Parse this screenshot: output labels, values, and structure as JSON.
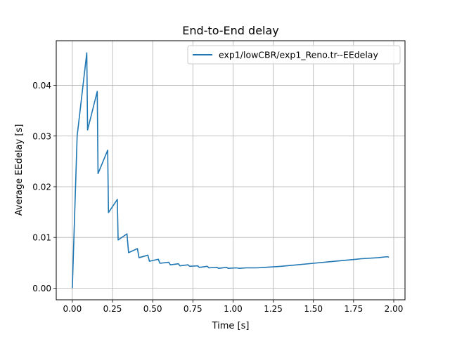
{
  "chart_data": {
    "type": "line",
    "title": "End-to-End delay",
    "xlabel": "Time [s]",
    "ylabel": "Average EEdelay [s]",
    "xlim": [
      -0.1,
      2.07
    ],
    "ylim": [
      -0.0023,
      0.0488
    ],
    "xticks": [
      0.0,
      0.25,
      0.5,
      0.75,
      1.0,
      1.25,
      1.5,
      1.75,
      2.0
    ],
    "xtick_labels": [
      "0.00",
      "0.25",
      "0.50",
      "0.75",
      "1.00",
      "1.25",
      "1.50",
      "1.75",
      "2.00"
    ],
    "yticks": [
      0.0,
      0.01,
      0.02,
      0.03,
      0.04
    ],
    "ytick_labels": [
      "0.00",
      "0.01",
      "0.02",
      "0.03",
      "0.04"
    ],
    "grid": true,
    "legend": {
      "placement": "top-right"
    },
    "colors": {
      "series": "#1f77b4",
      "grid": "#b0b0b0"
    },
    "series": [
      {
        "name": "exp1/lowCBR/exp1_Reno.tr--EEdelay",
        "x": [
          0.0,
          0.015,
          0.03,
          0.09,
          0.095,
          0.155,
          0.16,
          0.22,
          0.225,
          0.28,
          0.285,
          0.34,
          0.35,
          0.405,
          0.415,
          0.47,
          0.48,
          0.535,
          0.545,
          0.6,
          0.61,
          0.66,
          0.67,
          0.72,
          0.73,
          0.78,
          0.79,
          0.84,
          0.85,
          0.9,
          0.91,
          0.96,
          0.97,
          1.02,
          1.04,
          1.08,
          1.15,
          1.2,
          1.3,
          1.4,
          1.5,
          1.6,
          1.7,
          1.8,
          1.9,
          1.96,
          1.97
        ],
        "y": [
          0.0,
          0.015,
          0.03,
          0.0464,
          0.0312,
          0.0388,
          0.0226,
          0.0272,
          0.0149,
          0.0175,
          0.0095,
          0.0107,
          0.007,
          0.0078,
          0.006,
          0.0065,
          0.0053,
          0.0057,
          0.0049,
          0.0051,
          0.0046,
          0.0048,
          0.0044,
          0.0046,
          0.0043,
          0.0044,
          0.0041,
          0.0043,
          0.004,
          0.0041,
          0.0039,
          0.0041,
          0.0039,
          0.004,
          0.0039,
          0.004,
          0.004,
          0.0041,
          0.0043,
          0.0046,
          0.0049,
          0.0052,
          0.0055,
          0.0058,
          0.006,
          0.0062,
          0.0061
        ]
      }
    ]
  }
}
